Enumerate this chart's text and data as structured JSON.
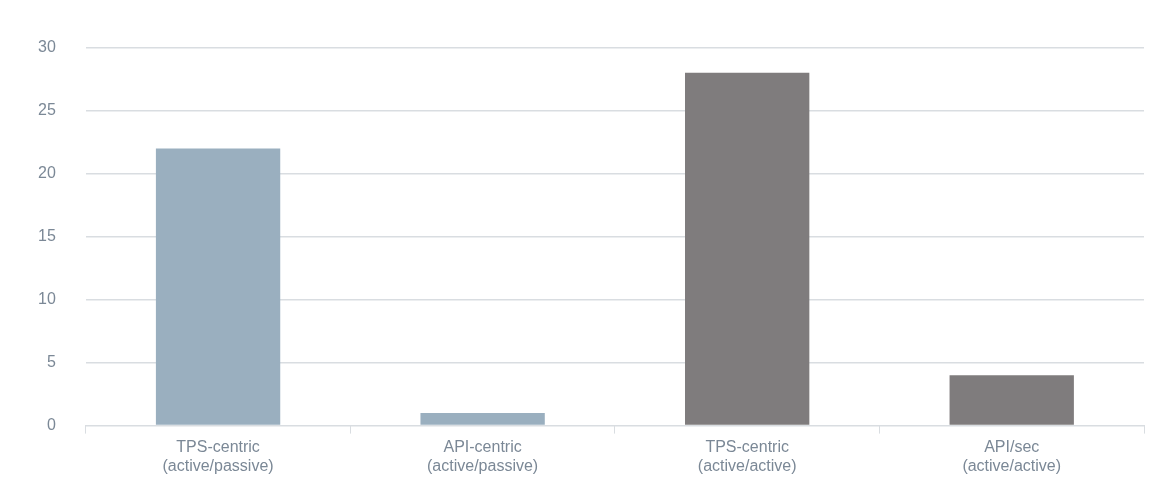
{
  "chart_data": {
    "type": "bar",
    "categories": [
      "TPS-centric (active/passive)",
      "API-centric (active/passive)",
      "TPS-centric (active/active)",
      "API/sec (active/active)"
    ],
    "values": [
      22,
      1,
      28,
      4
    ],
    "colors": [
      "#9aafbf",
      "#9aafbf",
      "#7f7c7d",
      "#7f7c7d"
    ],
    "ylim": [
      0,
      30
    ],
    "yticks": [
      0,
      5,
      10,
      15,
      20,
      25,
      30
    ],
    "grid": "y",
    "legend": false
  }
}
